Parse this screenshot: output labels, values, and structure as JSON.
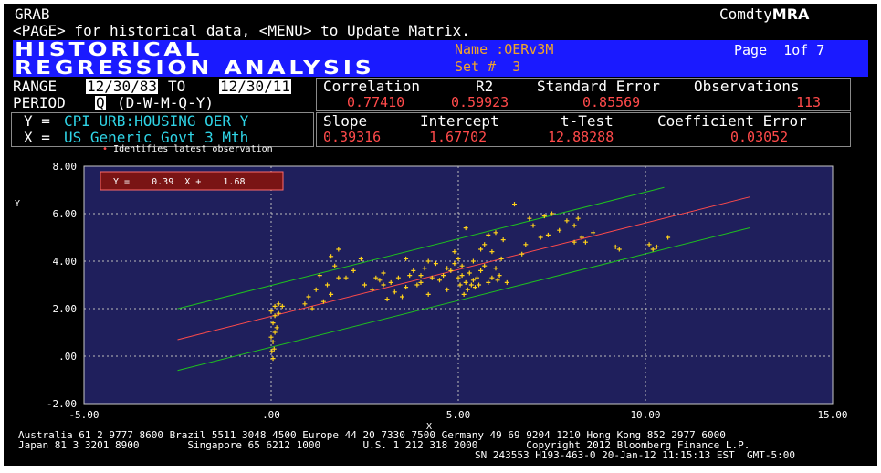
{
  "header": {
    "grab_label": "GRAB",
    "app_name_prefix": "Comdty",
    "app_name_bold": "MRA",
    "instructions": "<PAGE> for historical data, <MENU> to Update Matrix."
  },
  "title_bar": {
    "title_line1": "HISTORICAL",
    "title_line2": "REGRESSION ANALYSIS",
    "name_label": "Name :",
    "name_value": "OERv3M",
    "set_label": "Set #",
    "set_value": "3",
    "page_label": "Page",
    "page_value": "1of 7"
  },
  "inputs": {
    "range_label": "RANGE",
    "range_from": "12/30/83",
    "to_label": "TO",
    "range_to": "12/30/11",
    "period_label": "PERIOD",
    "period_value": "Q",
    "period_options": "(D-W-M-Q-Y)"
  },
  "variables": {
    "y_label": "Y =",
    "y_value": "CPI URB:HOUSING OER Y",
    "x_label": "X =",
    "x_value": "US Generic Govt 3 Mth"
  },
  "stats": {
    "correlation_label": "Correlation",
    "correlation_value": "0.77410",
    "r2_label": "R2",
    "r2_value": "0.59923",
    "std_error_label": "Standard Error",
    "std_error_value": "0.85569",
    "observations_label": "Observations",
    "observations_value": "113",
    "slope_label": "Slope",
    "slope_value": "0.39316",
    "intercept_label": "Intercept",
    "intercept_value": "1.67702",
    "ttest_label": "t-Test",
    "ttest_value": "12.88288",
    "coef_error_label": "Coefficient Error",
    "coef_error_value": "0.03052"
  },
  "legend_note": {
    "marker": "•",
    "text": "Identifies latest observation"
  },
  "colors": {
    "background": "#000000",
    "plot_bg": "#1f1f5c",
    "title_bar": "#1a1aff",
    "amber": "#f2a52a",
    "red": "#ff4a4a",
    "cyan": "#2fd4e6",
    "regression_line": "#ff4b4b",
    "band_line": "#1fbf1f",
    "points": "#ffd21a"
  },
  "chart_data": {
    "type": "scatter",
    "ylabel": "Y",
    "xlabel": "X",
    "xlim": [
      -5,
      15
    ],
    "ylim": [
      -2,
      8
    ],
    "x_ticks": [
      -5,
      0,
      5,
      10,
      15
    ],
    "x_tick_labels": [
      "-5.00",
      ".00",
      "5.00",
      "10.00",
      "15.00"
    ],
    "y_ticks": [
      -2,
      0,
      2,
      4,
      6,
      8
    ],
    "y_tick_labels": [
      "-2.00",
      ".00",
      "2.00",
      "4.00",
      "6.00",
      "8.00"
    ],
    "grid": true,
    "equation_label": "Y =    0.39  X +    1.68",
    "regression": {
      "slope": 0.39316,
      "intercept": 1.67702,
      "x_range": [
        -2.5,
        12.8
      ]
    },
    "band": {
      "offset": 1.3,
      "x_range": [
        -2.5,
        10.5
      ]
    },
    "points": [
      [
        0.02,
        0.2
      ],
      [
        0.05,
        0.6
      ],
      [
        0.08,
        0.3
      ],
      [
        0.1,
        1.0
      ],
      [
        0.05,
        1.4
      ],
      [
        0.1,
        1.7
      ],
      [
        0.0,
        1.9
      ],
      [
        0.15,
        1.2
      ],
      [
        0.2,
        1.8
      ],
      [
        0.05,
        -0.1
      ],
      [
        0.2,
        2.2
      ],
      [
        0.1,
        2.1
      ],
      [
        0.3,
        2.1
      ],
      [
        0.0,
        0.8
      ],
      [
        0.9,
        2.2
      ],
      [
        1.0,
        2.5
      ],
      [
        1.1,
        2.0
      ],
      [
        1.2,
        2.8
      ],
      [
        1.4,
        2.3
      ],
      [
        1.6,
        2.6
      ],
      [
        1.5,
        3.0
      ],
      [
        1.8,
        3.3
      ],
      [
        1.3,
        3.4
      ],
      [
        1.6,
        4.2
      ],
      [
        1.7,
        3.8
      ],
      [
        1.8,
        4.5
      ],
      [
        2.0,
        3.3
      ],
      [
        2.2,
        3.6
      ],
      [
        2.4,
        4.1
      ],
      [
        2.5,
        3.0
      ],
      [
        2.7,
        2.8
      ],
      [
        2.9,
        3.2
      ],
      [
        3.0,
        3.5
      ],
      [
        3.1,
        2.4
      ],
      [
        3.2,
        3.1
      ],
      [
        3.3,
        2.7
      ],
      [
        3.4,
        3.3
      ],
      [
        3.5,
        2.5
      ],
      [
        3.6,
        2.9
      ],
      [
        3.7,
        3.4
      ],
      [
        3.8,
        3.6
      ],
      [
        3.9,
        3.0
      ],
      [
        4.0,
        3.1
      ],
      [
        4.1,
        3.7
      ],
      [
        4.2,
        2.6
      ],
      [
        4.3,
        3.3
      ],
      [
        4.4,
        3.9
      ],
      [
        4.5,
        3.2
      ],
      [
        4.6,
        3.4
      ],
      [
        4.7,
        2.8
      ],
      [
        4.8,
        3.6
      ],
      [
        4.9,
        3.9
      ],
      [
        5.0,
        3.3
      ],
      [
        5.05,
        3.0
      ],
      [
        5.1,
        3.4
      ],
      [
        5.15,
        2.6
      ],
      [
        5.2,
        3.1
      ],
      [
        5.25,
        2.8
      ],
      [
        5.3,
        3.5
      ],
      [
        5.35,
        3.0
      ],
      [
        5.4,
        3.2
      ],
      [
        5.45,
        2.9
      ],
      [
        5.5,
        3.3
      ],
      [
        5.55,
        3.0
      ],
      [
        5.6,
        3.6
      ],
      [
        5.7,
        3.8
      ],
      [
        5.8,
        3.1
      ],
      [
        5.9,
        3.3
      ],
      [
        6.0,
        3.7
      ],
      [
        6.05,
        3.2
      ],
      [
        6.1,
        3.4
      ],
      [
        4.9,
        4.4
      ],
      [
        5.0,
        4.1
      ],
      [
        5.2,
        5.4
      ],
      [
        5.4,
        4.0
      ],
      [
        5.6,
        4.5
      ],
      [
        5.7,
        4.7
      ],
      [
        5.8,
        5.1
      ],
      [
        5.9,
        4.4
      ],
      [
        6.0,
        5.2
      ],
      [
        6.2,
        4.9
      ],
      [
        6.3,
        3.1
      ],
      [
        6.5,
        6.4
      ],
      [
        6.7,
        4.3
      ],
      [
        6.8,
        4.7
      ],
      [
        7.0,
        5.5
      ],
      [
        7.2,
        5.0
      ],
      [
        7.3,
        5.9
      ],
      [
        7.5,
        6.0
      ],
      [
        7.7,
        5.3
      ],
      [
        7.9,
        5.7
      ],
      [
        8.1,
        5.5
      ],
      [
        8.2,
        5.8
      ],
      [
        8.3,
        5.0
      ],
      [
        8.4,
        4.8
      ],
      [
        8.6,
        5.2
      ],
      [
        8.1,
        4.8
      ],
      [
        6.9,
        5.8
      ],
      [
        7.4,
        5.1
      ],
      [
        9.2,
        4.6
      ],
      [
        9.3,
        4.5
      ],
      [
        10.1,
        4.7
      ],
      [
        10.3,
        4.6
      ],
      [
        10.6,
        5.0
      ],
      [
        10.2,
        4.5
      ],
      [
        6.15,
        4.1
      ],
      [
        4.2,
        4.0
      ],
      [
        3.6,
        4.1
      ],
      [
        2.8,
        3.3
      ],
      [
        3.0,
        3.0
      ],
      [
        4.7,
        3.7
      ],
      [
        5.1,
        3.8
      ],
      [
        4.0,
        3.4
      ]
    ]
  },
  "footer": {
    "line1": "Australia 61 2 9777 8600 Brazil 5511 3048 4500 Europe 44 20 7330 7500 Germany 49 69 9204 1210 Hong Kong 852 2977 6000",
    "line2": "Japan 81 3 3201 8900        Singapore 65 6212 1000       U.S. 1 212 318 2000        Copyright 2012 Bloomberg Finance L.P.",
    "line3": "SN 243553 H193-463-0 20-Jan-12 11:15:13 EST  GMT-5:00"
  }
}
